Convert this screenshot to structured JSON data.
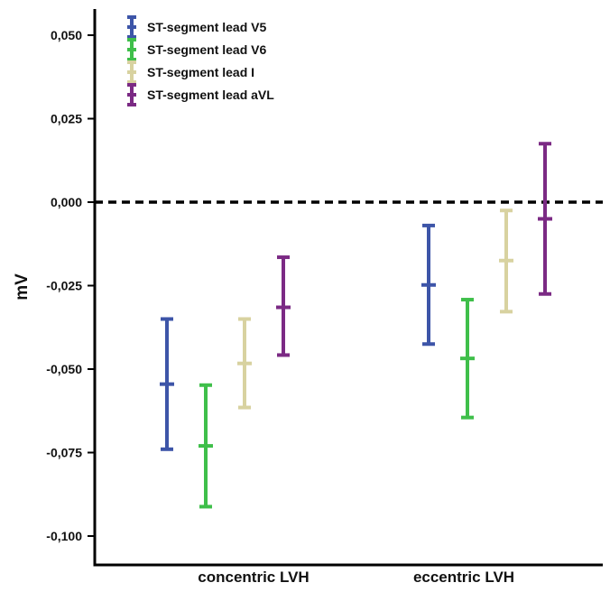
{
  "chart_data": {
    "type": "errorbar",
    "xlabel": "",
    "ylabel": "mV",
    "ylim": [
      -0.107,
      0.058
    ],
    "yticks": [
      0.05,
      0.025,
      0.0,
      -0.025,
      -0.05,
      -0.075,
      -0.1
    ],
    "ytick_labels": [
      "0,050",
      "0,025",
      "0,000",
      "-0,025",
      "-0,050",
      "-0,075",
      "-0,100"
    ],
    "categories": [
      "concentric LVH",
      "eccentric LVH"
    ],
    "reference_line": {
      "y": 0.0,
      "style": "dashed",
      "color": "#000000"
    },
    "legend_position": "top-left",
    "series": [
      {
        "name": "ST-segment lead V5",
        "color": "#3d55a8",
        "mean": [
          -0.0545,
          -0.0248
        ],
        "low": [
          -0.074,
          -0.0425
        ],
        "high": [
          -0.035,
          -0.007
        ]
      },
      {
        "name": "ST-segment lead V6",
        "color": "#3fbf4a",
        "mean": [
          -0.073,
          -0.0468
        ],
        "low": [
          -0.0912,
          -0.0645
        ],
        "high": [
          -0.0548,
          -0.0292
        ]
      },
      {
        "name": "ST-segment lead I",
        "color": "#d8d2a0",
        "mean": [
          -0.0483,
          -0.0175
        ],
        "low": [
          -0.0615,
          -0.0328
        ],
        "high": [
          -0.035,
          -0.0025
        ]
      },
      {
        "name": "ST-segment lead aVL",
        "color": "#7b2a84",
        "mean": [
          -0.0315,
          -0.005
        ],
        "low": [
          -0.0458,
          -0.0275
        ],
        "high": [
          -0.0165,
          0.0175
        ]
      }
    ]
  }
}
